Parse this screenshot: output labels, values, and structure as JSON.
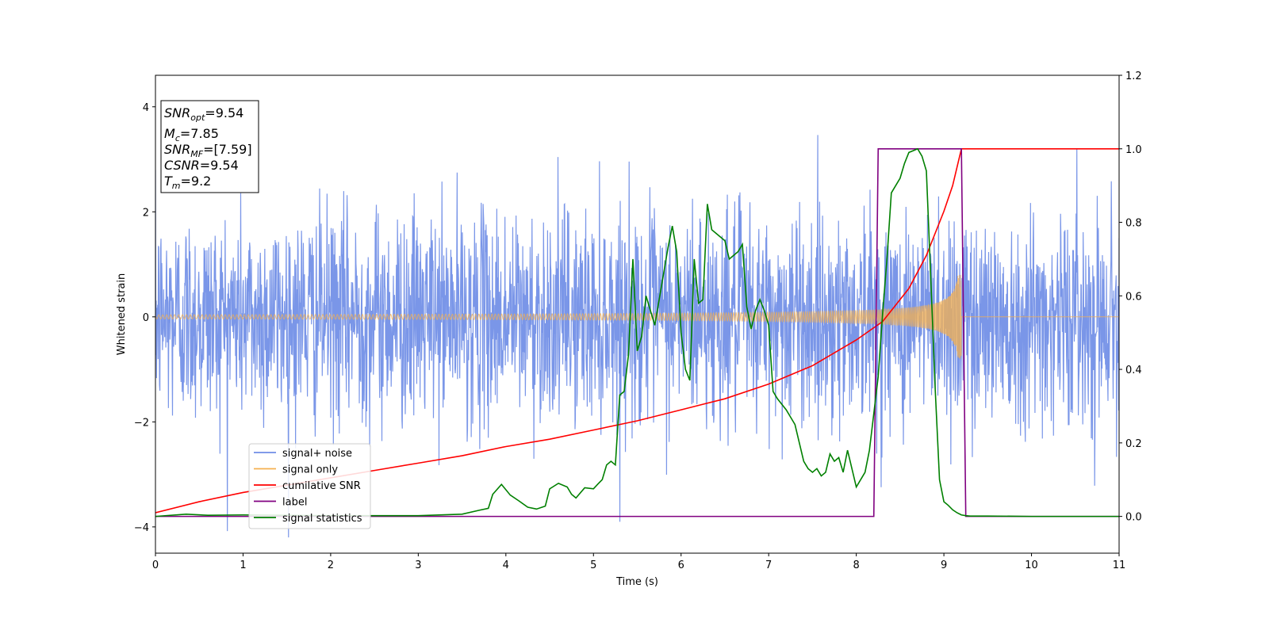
{
  "chart_data": {
    "type": "line",
    "xlabel": "Time (s)",
    "ylabel": "Whitened strain",
    "xlim": [
      0,
      11
    ],
    "ylim": [
      -4.5,
      4.6
    ],
    "y2lim": [
      -0.1,
      1.2
    ],
    "xticks": [
      0,
      1,
      2,
      3,
      4,
      5,
      6,
      7,
      8,
      9,
      10,
      11
    ],
    "yticks": [
      -4,
      -2,
      0,
      2,
      4
    ],
    "y2ticks": [
      0.0,
      0.2,
      0.4,
      0.6,
      0.8,
      1.0,
      1.2
    ],
    "legend_position": "lower-left",
    "grid": false,
    "info_box": {
      "snr_opt": {
        "base": "SNR",
        "sub": "opt",
        "value": "=9.54"
      },
      "mc": {
        "base": "M",
        "sub": "c",
        "value": "=7.85"
      },
      "snr_mf": {
        "base": "SNR",
        "sub": "MF",
        "value": "=[7.59]"
      },
      "csnr": {
        "base": "CSNR",
        "value": "=9.54"
      },
      "tm": {
        "base": "T",
        "sub": "m",
        "value": "=9.2"
      }
    },
    "series": [
      {
        "name": "signal+ noise",
        "color": "#6f8de6",
        "axis": "left",
        "description_values": {
          "std": 1.0,
          "t_end": 11
        }
      },
      {
        "name": "signal only",
        "color": "#f5b04f",
        "axis": "left",
        "description_values": {
          "merger_time": 9.2,
          "peak_amplitude": 0.8
        }
      },
      {
        "name": "cumilative SNR",
        "color": "#ff0000",
        "axis": "right",
        "x": [
          0,
          0.5,
          1,
          1.5,
          2,
          2.5,
          3,
          3.5,
          4,
          4.5,
          5,
          5.5,
          6,
          6.5,
          7,
          7.5,
          8,
          8.3,
          8.6,
          8.8,
          9.0,
          9.1,
          9.15,
          9.2,
          11
        ],
        "y": [
          0.01,
          0.04,
          0.065,
          0.085,
          0.105,
          0.125,
          0.145,
          0.165,
          0.19,
          0.21,
          0.235,
          0.26,
          0.29,
          0.32,
          0.36,
          0.41,
          0.48,
          0.53,
          0.62,
          0.71,
          0.83,
          0.9,
          0.95,
          1.0,
          1.0
        ]
      },
      {
        "name": "label",
        "color": "#800080",
        "axis": "right",
        "x": [
          0,
          8.2,
          8.25,
          9.2,
          9.25,
          11
        ],
        "y": [
          0,
          0,
          1,
          1,
          0,
          0
        ]
      },
      {
        "name": "signal statistics",
        "color": "#008000",
        "axis": "right",
        "x": [
          0,
          0.35,
          0.6,
          1.0,
          2.0,
          3.0,
          3.5,
          3.7,
          3.8,
          3.85,
          3.95,
          4.05,
          4.15,
          4.25,
          4.35,
          4.45,
          4.5,
          4.6,
          4.7,
          4.75,
          4.8,
          4.9,
          5.0,
          5.05,
          5.1,
          5.15,
          5.2,
          5.25,
          5.3,
          5.35,
          5.4,
          5.45,
          5.5,
          5.55,
          5.6,
          5.7,
          5.75,
          5.8,
          5.85,
          5.9,
          5.95,
          6.0,
          6.05,
          6.1,
          6.15,
          6.2,
          6.25,
          6.3,
          6.35,
          6.4,
          6.45,
          6.5,
          6.55,
          6.6,
          6.65,
          6.7,
          6.75,
          6.8,
          6.85,
          6.9,
          6.95,
          7.0,
          7.05,
          7.1,
          7.2,
          7.3,
          7.4,
          7.45,
          7.5,
          7.55,
          7.6,
          7.65,
          7.7,
          7.75,
          7.8,
          7.85,
          7.9,
          8.0,
          8.1,
          8.15,
          8.2,
          8.25,
          8.3,
          8.35,
          8.4,
          8.5,
          8.55,
          8.6,
          8.65,
          8.7,
          8.75,
          8.8,
          8.85,
          8.9,
          8.95,
          9.0,
          9.05,
          9.1,
          9.15,
          9.2,
          9.25,
          9.3,
          9.5,
          10.0,
          11.0
        ],
        "y": [
          0,
          0.006,
          0.003,
          0.004,
          0.002,
          0.002,
          0.006,
          0.017,
          0.022,
          0.06,
          0.087,
          0.058,
          0.042,
          0.025,
          0.02,
          0.028,
          0.075,
          0.09,
          0.08,
          0.06,
          0.05,
          0.078,
          0.075,
          0.088,
          0.1,
          0.14,
          0.15,
          0.14,
          0.33,
          0.34,
          0.44,
          0.7,
          0.45,
          0.49,
          0.6,
          0.52,
          0.59,
          0.66,
          0.73,
          0.79,
          0.72,
          0.5,
          0.4,
          0.37,
          0.7,
          0.58,
          0.59,
          0.85,
          0.78,
          0.77,
          0.76,
          0.75,
          0.7,
          0.71,
          0.72,
          0.74,
          0.57,
          0.51,
          0.56,
          0.59,
          0.56,
          0.52,
          0.34,
          0.32,
          0.29,
          0.25,
          0.15,
          0.13,
          0.12,
          0.13,
          0.11,
          0.12,
          0.17,
          0.15,
          0.16,
          0.12,
          0.18,
          0.08,
          0.12,
          0.18,
          0.28,
          0.38,
          0.55,
          0.7,
          0.88,
          0.92,
          0.96,
          0.99,
          0.995,
          1.0,
          0.98,
          0.94,
          0.65,
          0.35,
          0.1,
          0.04,
          0.03,
          0.018,
          0.01,
          0.004,
          0.002,
          0.001,
          0.001,
          0,
          0
        ]
      }
    ]
  }
}
